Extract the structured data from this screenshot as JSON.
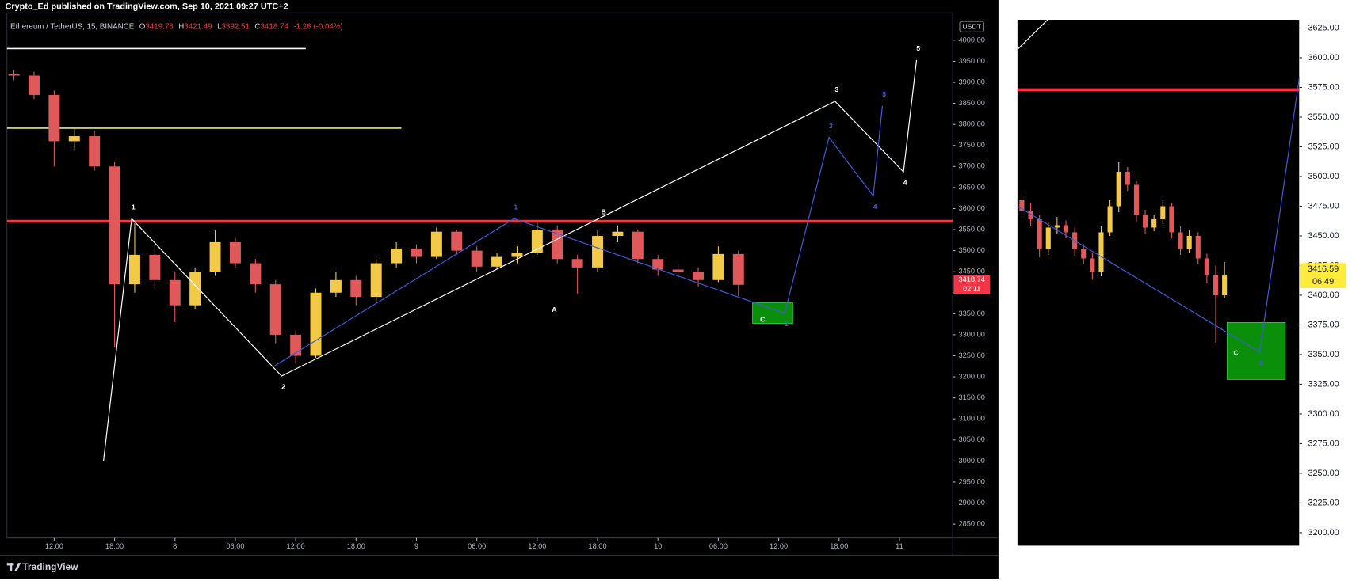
{
  "published": "Crypto_Ed published on TradingView.com, Sep 10, 2021 09:27 UTC+2",
  "footer": "TradingView",
  "chart_data": [
    {
      "type": "candlestick",
      "symbol": "Ethereum / TetherUS, 15, BINANCE",
      "ohlc": [
        {
          "key": "O",
          "value": 3419.78
        },
        {
          "key": "H",
          "value": 3421.49
        },
        {
          "key": "L",
          "value": 3392.51
        },
        {
          "key": "C",
          "value": 3418.74
        }
      ],
      "change": "-1.26 (-0.04%)",
      "currency": "USDT",
      "countdown": "02:11",
      "last_color": "#f23645",
      "up_color": "#f3c948",
      "down_color": "#e0595a",
      "x": [
        8,
        10,
        12,
        14,
        16,
        18,
        20,
        22,
        24,
        26,
        28,
        30,
        32,
        34,
        36,
        38,
        40,
        42,
        44,
        46,
        48,
        50,
        52,
        54,
        56,
        58,
        60,
        62,
        64,
        66,
        68,
        70,
        72,
        74,
        76,
        78,
        80
      ],
      "open": [
        3920,
        3916,
        3870,
        3760,
        3772,
        3700,
        3420,
        3490,
        3430,
        3370,
        3450,
        3520,
        3470,
        3420,
        3300,
        3250,
        3400,
        3430,
        3390,
        3470,
        3505,
        3485,
        3545,
        3500,
        3462,
        3485,
        3495,
        3550,
        3480,
        3460,
        3535,
        3545,
        3480,
        3455,
        3450,
        3430,
        3492
      ],
      "high": [
        3930,
        3925,
        3880,
        3790,
        3785,
        3710,
        3565,
        3510,
        3450,
        3460,
        3548,
        3530,
        3480,
        3430,
        3310,
        3410,
        3450,
        3440,
        3480,
        3520,
        3515,
        3555,
        3550,
        3510,
        3495,
        3510,
        3565,
        3560,
        3490,
        3550,
        3560,
        3550,
        3490,
        3470,
        3460,
        3510,
        3500
      ],
      "low": [
        3905,
        3860,
        3700,
        3740,
        3690,
        3270,
        3400,
        3410,
        3330,
        3360,
        3440,
        3460,
        3400,
        3280,
        3232,
        3245,
        3390,
        3370,
        3380,
        3460,
        3470,
        3480,
        3490,
        3450,
        3455,
        3470,
        3490,
        3470,
        3398,
        3450,
        3520,
        3470,
        3440,
        3430,
        3415,
        3425,
        3392
      ],
      "close": [
        3916,
        3870,
        3760,
        3772,
        3700,
        3420,
        3490,
        3430,
        3370,
        3450,
        3520,
        3470,
        3420,
        3300,
        3250,
        3400,
        3430,
        3390,
        3470,
        3505,
        3485,
        3545,
        3500,
        3462,
        3485,
        3495,
        3550,
        3480,
        3460,
        3535,
        3545,
        3480,
        3455,
        3450,
        3430,
        3492,
        3418.74
      ],
      "xlim": [
        7.3,
        101.3
      ],
      "ylim": [
        2817,
        4065
      ],
      "xticks": [
        {
          "value": 12,
          "label": "12:00"
        },
        {
          "value": 18,
          "label": "18:00"
        },
        {
          "value": 24,
          "label": "8"
        },
        {
          "value": 30,
          "label": "06:00"
        },
        {
          "value": 36,
          "label": "12:00"
        },
        {
          "value": 42,
          "label": "18:00"
        },
        {
          "value": 48,
          "label": "9"
        },
        {
          "value": 54,
          "label": "06:00"
        },
        {
          "value": 60,
          "label": "12:00"
        },
        {
          "value": 66,
          "label": "18:00"
        },
        {
          "value": 72,
          "label": "10"
        },
        {
          "value": 78,
          "label": "06:00"
        },
        {
          "value": 84,
          "label": "12:00"
        },
        {
          "value": 90,
          "label": "18:00"
        },
        {
          "value": 96,
          "label": "11"
        }
      ],
      "yticks": [
        {
          "value": 4000,
          "label": "4000.00"
        },
        {
          "value": 3950,
          "label": "3950.00"
        },
        {
          "value": 3900,
          "label": "3900.00"
        },
        {
          "value": 3850,
          "label": "3850.00"
        },
        {
          "value": 3800,
          "label": "3800.00"
        },
        {
          "value": 3750,
          "label": "3750.00"
        },
        {
          "value": 3700,
          "label": "3700.00"
        },
        {
          "value": 3650,
          "label": "3650.00"
        },
        {
          "value": 3600,
          "label": "3600.00"
        },
        {
          "value": 3550,
          "label": "3550.00"
        },
        {
          "value": 3500,
          "label": "3500.00"
        },
        {
          "value": 3450,
          "label": "3450.00"
        },
        {
          "value": 3400,
          "label": "3400.00"
        },
        {
          "value": 3350,
          "label": "3350.00"
        },
        {
          "value": 3300,
          "label": "3300.00"
        },
        {
          "value": 3250,
          "label": "3250.00"
        },
        {
          "value": 3200,
          "label": "3200.00"
        },
        {
          "value": 3150,
          "label": "3150.00"
        },
        {
          "value": 3100,
          "label": "3100.00"
        },
        {
          "value": 3050,
          "label": "3050.00"
        },
        {
          "value": 3000,
          "label": "3000.00"
        },
        {
          "value": 2950,
          "label": "2950.00"
        },
        {
          "value": 2900,
          "label": "2900.00"
        },
        {
          "value": 2850,
          "label": "2850.00"
        }
      ],
      "hlines": [
        {
          "y": 3980,
          "from": 7.3,
          "to": 37,
          "color": "#ffffff",
          "width": 1.5
        },
        {
          "y": 3791,
          "from": 7.3,
          "to": 46.5,
          "color": "#e8e889",
          "width": 1.5
        },
        {
          "y": 3570,
          "color": "#f23645",
          "width": 3
        }
      ],
      "zones": [
        {
          "x": [
            81.4,
            85.4
          ],
          "y": [
            3327,
            3376
          ],
          "color": "#0b8f0b"
        }
      ],
      "waves": [
        {
          "color": "#ffffff",
          "x": [
            16.9,
            19.7,
            34.6,
            89.6,
            96.4,
            97.7
          ],
          "y": [
            3000,
            3576,
            3202,
            3855,
            3687,
            3953
          ],
          "labels": [
            null,
            "1",
            "2",
            "3",
            "4",
            "5"
          ]
        },
        {
          "color": "#3d5bd9",
          "x": [
            33.9,
            57.7,
            84.6,
            89,
            93.4,
            94.3
          ],
          "y": [
            3226,
            3576,
            3351,
            3769,
            3630,
            3844
          ],
          "labels": [
            null,
            "1",
            "2",
            "3",
            "4",
            "5"
          ]
        }
      ],
      "annotations": [
        {
          "x": 61.7,
          "y": 3359,
          "text": "A"
        },
        {
          "x": 66.6,
          "y": 3591,
          "text": "B"
        },
        {
          "x": 82.4,
          "y": 3335,
          "text": "C"
        }
      ]
    },
    {
      "type": "candlestick",
      "countdown": "06:49",
      "last_color": "#ffeb3b",
      "up_color": "#f3c948",
      "down_color": "#e0595a",
      "x": [
        0.5,
        1.5,
        2.5,
        3.5,
        4.5,
        5.5,
        6.5,
        7.5,
        8.5,
        9.5,
        10.5,
        11.5,
        12.5,
        13.5,
        14.5,
        15.5,
        16.5,
        17.5,
        18.5,
        19.5,
        20.5,
        21.5,
        22.5,
        23.5
      ],
      "open": [
        3480,
        3471,
        3464,
        3439,
        3457,
        3459,
        3453,
        3439,
        3431,
        3420,
        3453,
        3475,
        3504,
        3493,
        3468,
        3457,
        3464,
        3475,
        3453,
        3439,
        3450,
        3431,
        3417,
        3400
      ],
      "high": [
        3485,
        3478,
        3468,
        3462,
        3466,
        3463,
        3457,
        3443,
        3436,
        3458,
        3480,
        3512,
        3508,
        3496,
        3472,
        3468,
        3480,
        3478,
        3458,
        3455,
        3453,
        3435,
        3425,
        3428
      ],
      "low": [
        3466,
        3458,
        3432,
        3434,
        3452,
        3448,
        3433,
        3426,
        3413,
        3416,
        3450,
        3470,
        3488,
        3462,
        3452,
        3454,
        3460,
        3448,
        3434,
        3436,
        3426,
        3410,
        3360,
        3398
      ],
      "close": [
        3471,
        3464,
        3439,
        3457,
        3459,
        3453,
        3439,
        3431,
        3420,
        3453,
        3475,
        3504,
        3493,
        3468,
        3457,
        3464,
        3475,
        3453,
        3439,
        3450,
        3431,
        3417,
        3400,
        3416.59
      ],
      "xlim": [
        0,
        32
      ],
      "ylim": [
        3189,
        3632
      ],
      "yticks": [
        {
          "value": 3625,
          "label": "3625.00"
        },
        {
          "value": 3600,
          "label": "3600.00"
        },
        {
          "value": 3575,
          "label": "3575.00"
        },
        {
          "value": 3550,
          "label": "3550.00"
        },
        {
          "value": 3525,
          "label": "3525.00"
        },
        {
          "value": 3500,
          "label": "3500.00"
        },
        {
          "value": 3475,
          "label": "3475.00"
        },
        {
          "value": 3450,
          "label": "3450.00"
        },
        {
          "value": 3425,
          "label": "3425.00"
        },
        {
          "value": 3400,
          "label": "3400.00"
        },
        {
          "value": 3375,
          "label": "3375.00"
        },
        {
          "value": 3350,
          "label": "3350.00"
        },
        {
          "value": 3325,
          "label": "3325.00"
        },
        {
          "value": 3300,
          "label": "3300.00"
        },
        {
          "value": 3275,
          "label": "3275.00"
        },
        {
          "value": 3250,
          "label": "3250.00"
        },
        {
          "value": 3225,
          "label": "3225.00"
        },
        {
          "value": 3200,
          "label": "3200.00"
        }
      ],
      "hlines": [
        {
          "y": 3573,
          "color": "#f23645",
          "width": 3.5
        }
      ],
      "zones": [
        {
          "x": [
            23.8,
            30.4
          ],
          "y": [
            3329,
            3377
          ],
          "color": "#0b8f0b"
        }
      ],
      "waves": [
        {
          "color": "#ffffff",
          "x": [
            0,
            3.7
          ],
          "y": [
            3607,
            3634
          ]
        },
        {
          "color": "#3d5bd9",
          "x": [
            0,
            27.5,
            32
          ],
          "y": [
            3475,
            3352,
            3584
          ],
          "labels": [
            null,
            "2",
            null
          ]
        }
      ],
      "annotations": [
        {
          "x": 24.8,
          "y": 3351,
          "text": "C"
        }
      ]
    }
  ]
}
